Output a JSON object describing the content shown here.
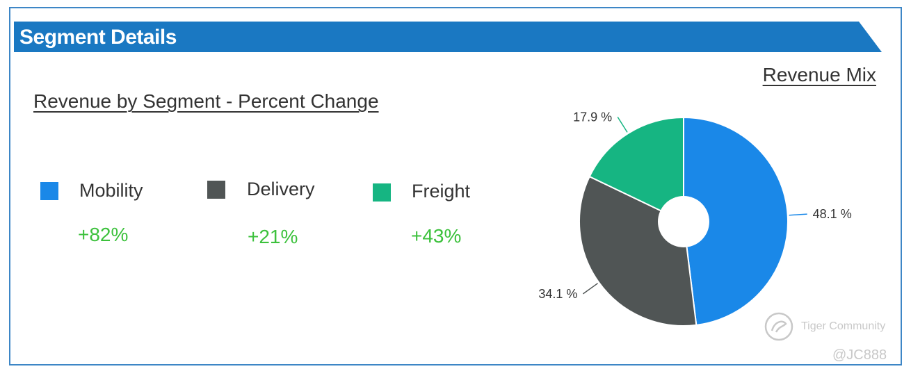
{
  "header": {
    "title": "Segment Details",
    "color": "#1a78c2"
  },
  "percent_change": {
    "title": "Revenue by Segment - Percent Change",
    "items": [
      {
        "label": "Mobility",
        "change": "+82%",
        "color": "#1a88e8"
      },
      {
        "label": "Delivery",
        "change": "+21%",
        "color": "#505555"
      },
      {
        "label": "Freight",
        "change": "+43%",
        "color": "#16b582"
      }
    ],
    "change_color": "#3cc13c"
  },
  "chart_data": {
    "type": "pie",
    "title": "Revenue Mix",
    "donut": true,
    "slices": [
      {
        "name": "Mobility",
        "value": 48.1,
        "label": "48.1 %",
        "color": "#1a88e8"
      },
      {
        "name": "Delivery",
        "value": 34.1,
        "label": "34.1 %",
        "color": "#505555"
      },
      {
        "name": "Freight",
        "value": 17.9,
        "label": "17.9 %",
        "color": "#16b582"
      }
    ]
  },
  "watermark": {
    "brand": "Tiger Community",
    "user": "@JC888",
    "icon": "tiger-community-logo-icon"
  }
}
